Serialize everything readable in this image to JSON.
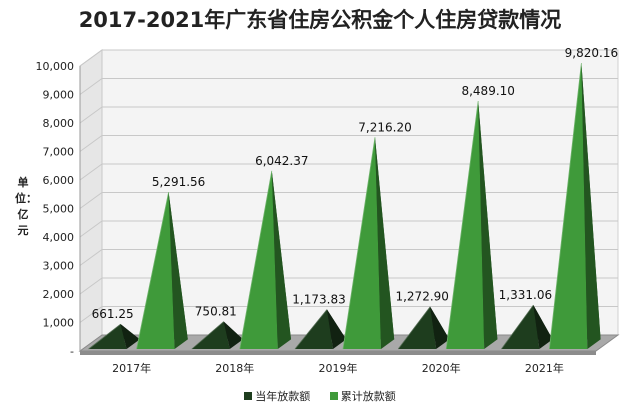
{
  "chart_data": {
    "type": "bar",
    "title": "2017-2021年广东省住房公积金个人住房贷款情况",
    "ylabel": "单位：亿元",
    "xlabel": "",
    "categories": [
      "2017年",
      "2018年",
      "2019年",
      "2020年",
      "2021年"
    ],
    "series": [
      {
        "name": "当年放款额",
        "values": [
          661.25,
          750.81,
          1173.83,
          1272.9,
          1331.06
        ],
        "labels": [
          "661.25",
          "750.81",
          "1,173.83",
          "1,272.90",
          "1,331.06"
        ],
        "color": "#1e3d1e"
      },
      {
        "name": "累计放款额",
        "values": [
          5291.56,
          6042.37,
          7216.2,
          8489.1,
          9820.16
        ],
        "labels": [
          "5,291.56",
          "6,042.37",
          "7,216.20",
          "8,489.10",
          "9,820.16"
        ],
        "color": "#3f9a3a"
      }
    ],
    "ylim": [
      0,
      10000
    ],
    "yticks": [
      0,
      1000,
      2000,
      3000,
      4000,
      5000,
      6000,
      7000,
      8000,
      9000,
      10000
    ],
    "ytick_labels": [
      "-",
      "1,000",
      "2,000",
      "3,000",
      "4,000",
      "5,000",
      "6,000",
      "7,000",
      "8,000",
      "9,000",
      "10,000"
    ],
    "shape": "3d-pyramid",
    "grid": true,
    "legend_position": "bottom"
  }
}
